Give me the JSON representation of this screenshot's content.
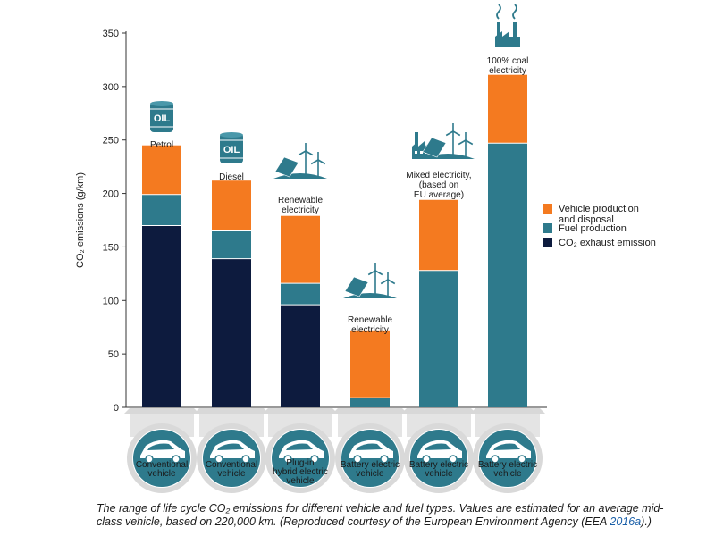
{
  "chart_data": {
    "type": "bar",
    "stacked": true,
    "ylabel": "CO₂ emissions (g/km)",
    "ylim": [
      0,
      350
    ],
    "yticks": [
      "0",
      "50",
      "100",
      "150",
      "200",
      "250",
      "300",
      "350"
    ],
    "grid": false,
    "legend_position": "right",
    "categories": [
      "Conventional vehicle",
      "Conventional vehicle",
      "Plug-in hybrid electric vehicle",
      "Battery electric vehicle",
      "Battery electric vehicle",
      "Battery electric vehicle"
    ],
    "category_lines": [
      [
        "Conventional",
        "vehicle"
      ],
      [
        "Conventional",
        "vehicle"
      ],
      [
        "Plug-in",
        "hybrid electric",
        "vehicle"
      ],
      [
        "Battery electric",
        "vehicle"
      ],
      [
        "Battery electric",
        "vehicle"
      ],
      [
        "Battery electric",
        "vehicle"
      ]
    ],
    "fuel_labels": [
      [
        "Petrol"
      ],
      [
        "Diesel"
      ],
      [
        "Renewable",
        "electricity"
      ],
      [
        "Renewable",
        "electricity"
      ],
      [
        "Mixed electricity,",
        "(based on",
        "EU average)"
      ],
      [
        "100% coal",
        "electricity"
      ]
    ],
    "fuel_icons": [
      "oil-barrel-icon",
      "oil-barrel-icon",
      "solar-wind-icon",
      "solar-wind-icon",
      "factory-solar-wind-icon",
      "coal-factory-icon"
    ],
    "barrel_text": "OIL",
    "series": [
      {
        "name": "CO₂ exhaust emission",
        "color": "#0d1b3e",
        "values": [
          170,
          139,
          96,
          0,
          0,
          0
        ]
      },
      {
        "name": "Fuel production",
        "color": "#2e7a8c",
        "values": [
          29,
          26,
          20,
          9,
          128,
          247
        ]
      },
      {
        "name": "Vehicle production and disposal",
        "color": "#f47a20",
        "values": [
          46,
          47,
          63,
          63,
          66,
          64
        ]
      }
    ],
    "legend": [
      {
        "lines": [
          "Vehicle production",
          "and disposal"
        ],
        "color": "#f47a20"
      },
      {
        "lines": [
          "Fuel production"
        ],
        "color": "#2e7a8c"
      },
      {
        "lines": [
          "CO₂ exhaust emission"
        ],
        "color": "#0d1b3e"
      }
    ]
  },
  "caption": {
    "text": "The range of life cycle CO₂ emissions for different vehicle and fuel types. Values are estimated for an average mid-class vehicle, based on 220,000 km. (Reproduced courtesy of the European Environment Agency (EEA ",
    "ref": "2016a",
    "tail": ").)"
  }
}
